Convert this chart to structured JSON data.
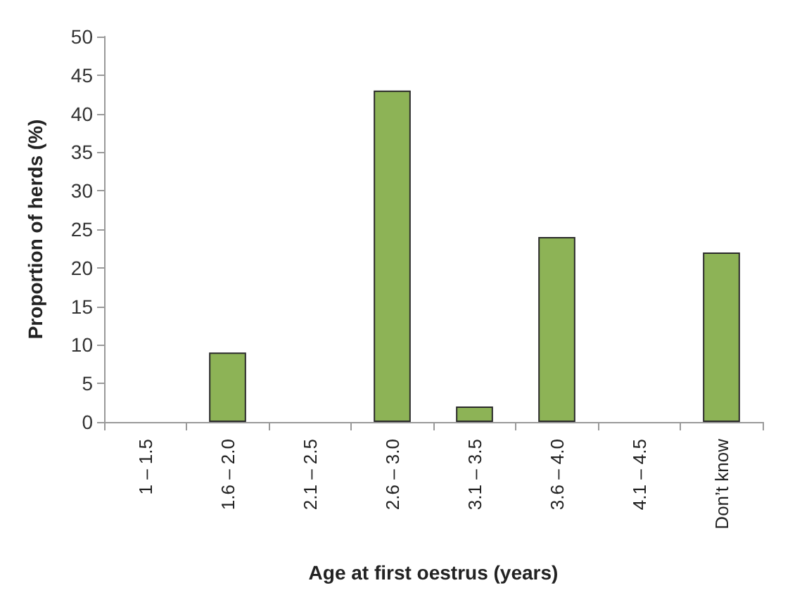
{
  "chart_data": {
    "type": "bar",
    "xlabel": "Age at first oestrus (years)",
    "ylabel": "Proportion of herds (%)",
    "categories": [
      "1 – 1.5",
      "1.6 – 2.0",
      "2.1 – 2.5",
      "2.6 – 3.0",
      "3.1 – 3.5",
      "3.6 – 4.0",
      "4.1 – 4.5",
      "Don’t know"
    ],
    "values": [
      0,
      9,
      0,
      43,
      2,
      24,
      0,
      22
    ],
    "color": "#8db356",
    "ylim": [
      0,
      50
    ],
    "yticks": [
      0,
      5,
      10,
      15,
      20,
      25,
      30,
      35,
      40,
      45,
      50
    ],
    "grid": false
  }
}
